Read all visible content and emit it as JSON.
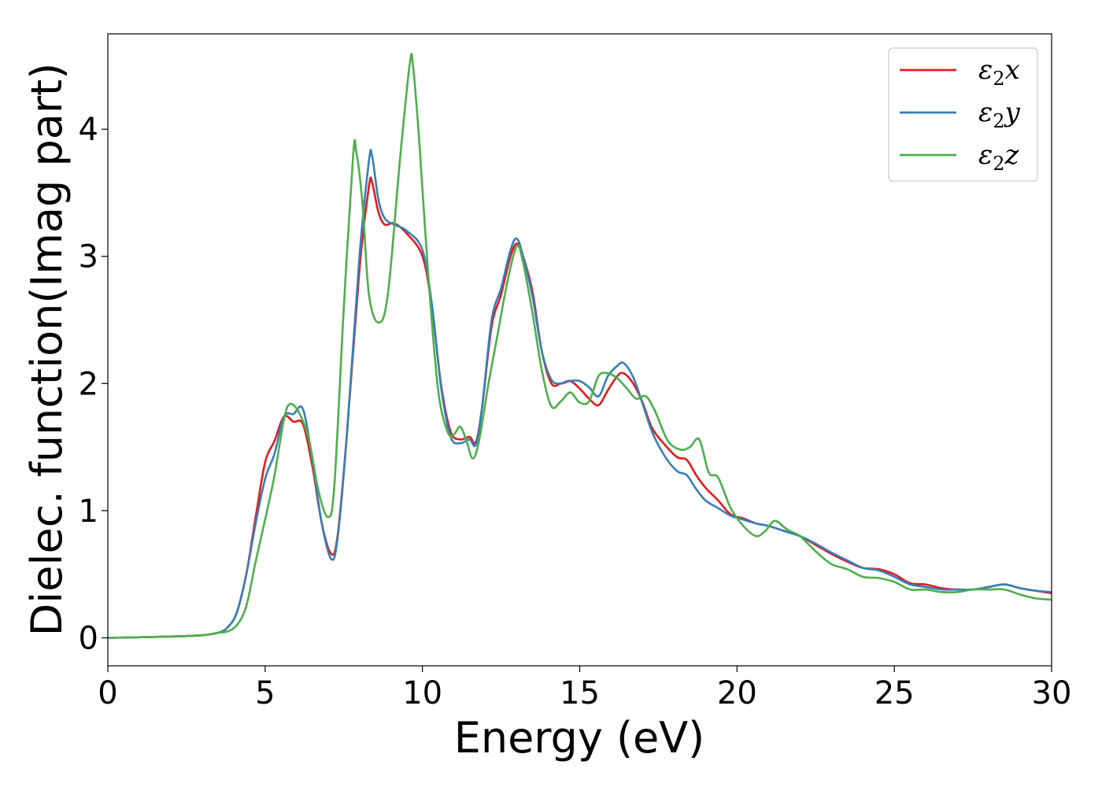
{
  "chart_data": {
    "type": "line",
    "title": "",
    "xlabel": "Energy (eV)",
    "ylabel": "Dielec. function(Imag part)",
    "xlim": [
      0,
      30
    ],
    "ylim": [
      -0.22,
      4.75
    ],
    "xticks": [
      0,
      5,
      10,
      15,
      20,
      25,
      30
    ],
    "xtick_labels": [
      "0",
      "5",
      "10",
      "15",
      "20",
      "25",
      "30"
    ],
    "yticks": [
      0,
      1,
      2,
      3,
      4
    ],
    "ytick_labels": [
      "0",
      "1",
      "2",
      "3",
      "4"
    ],
    "grid": false,
    "legend_position": "top-right",
    "series": [
      {
        "name": "ε2x",
        "symbol": "ε",
        "sub": "2",
        "suffix": "x",
        "color": "#e41a1c",
        "points": [
          [
            0,
            0
          ],
          [
            2,
            0.01
          ],
          [
            3,
            0.02
          ],
          [
            3.5,
            0.04
          ],
          [
            3.8,
            0.08
          ],
          [
            4.1,
            0.2
          ],
          [
            4.4,
            0.5
          ],
          [
            4.7,
            0.95
          ],
          [
            5.0,
            1.38
          ],
          [
            5.3,
            1.55
          ],
          [
            5.6,
            1.74
          ],
          [
            5.9,
            1.7
          ],
          [
            6.2,
            1.68
          ],
          [
            6.5,
            1.35
          ],
          [
            6.8,
            0.9
          ],
          [
            7.1,
            0.66
          ],
          [
            7.3,
            0.8
          ],
          [
            7.6,
            1.6
          ],
          [
            8.0,
            2.9
          ],
          [
            8.3,
            3.55
          ],
          [
            8.4,
            3.58
          ],
          [
            8.6,
            3.35
          ],
          [
            8.8,
            3.25
          ],
          [
            9.1,
            3.26
          ],
          [
            9.5,
            3.18
          ],
          [
            10.0,
            3.0
          ],
          [
            10.3,
            2.6
          ],
          [
            10.6,
            1.98
          ],
          [
            10.9,
            1.62
          ],
          [
            11.2,
            1.56
          ],
          [
            11.5,
            1.58
          ],
          [
            11.7,
            1.54
          ],
          [
            11.9,
            1.82
          ],
          [
            12.2,
            2.45
          ],
          [
            12.5,
            2.7
          ],
          [
            12.8,
            3.0
          ],
          [
            13.0,
            3.1
          ],
          [
            13.2,
            3.0
          ],
          [
            13.5,
            2.72
          ],
          [
            13.8,
            2.25
          ],
          [
            14.1,
            2.0
          ],
          [
            14.4,
            2.0
          ],
          [
            14.7,
            2.02
          ],
          [
            15.0,
            1.96
          ],
          [
            15.3,
            1.88
          ],
          [
            15.6,
            1.83
          ],
          [
            15.9,
            1.95
          ],
          [
            16.2,
            2.06
          ],
          [
            16.4,
            2.08
          ],
          [
            16.7,
            2.0
          ],
          [
            17.0,
            1.85
          ],
          [
            17.3,
            1.65
          ],
          [
            17.7,
            1.52
          ],
          [
            18.1,
            1.42
          ],
          [
            18.4,
            1.4
          ],
          [
            18.7,
            1.28
          ],
          [
            19.0,
            1.18
          ],
          [
            19.4,
            1.08
          ],
          [
            19.8,
            0.97
          ],
          [
            20.2,
            0.94
          ],
          [
            20.6,
            0.9
          ],
          [
            21.0,
            0.88
          ],
          [
            21.5,
            0.84
          ],
          [
            22.0,
            0.8
          ],
          [
            22.5,
            0.73
          ],
          [
            23.0,
            0.66
          ],
          [
            23.5,
            0.6
          ],
          [
            24.0,
            0.55
          ],
          [
            24.5,
            0.54
          ],
          [
            25.0,
            0.5
          ],
          [
            25.5,
            0.43
          ],
          [
            26.0,
            0.42
          ],
          [
            26.5,
            0.39
          ],
          [
            27.0,
            0.38
          ],
          [
            27.5,
            0.38
          ],
          [
            28.0,
            0.4
          ],
          [
            28.5,
            0.42
          ],
          [
            29.0,
            0.39
          ],
          [
            29.5,
            0.37
          ],
          [
            30.0,
            0.35
          ]
        ]
      },
      {
        "name": "ε2y",
        "symbol": "ε",
        "sub": "2",
        "suffix": "y",
        "color": "#377eb8",
        "points": [
          [
            0,
            0
          ],
          [
            2,
            0.01
          ],
          [
            3,
            0.02
          ],
          [
            3.5,
            0.04
          ],
          [
            3.8,
            0.08
          ],
          [
            4.1,
            0.2
          ],
          [
            4.4,
            0.5
          ],
          [
            4.7,
            0.9
          ],
          [
            5.0,
            1.25
          ],
          [
            5.3,
            1.45
          ],
          [
            5.6,
            1.74
          ],
          [
            5.9,
            1.76
          ],
          [
            6.2,
            1.8
          ],
          [
            6.5,
            1.4
          ],
          [
            6.8,
            0.9
          ],
          [
            7.1,
            0.62
          ],
          [
            7.3,
            0.78
          ],
          [
            7.6,
            1.6
          ],
          [
            8.0,
            3.0
          ],
          [
            8.3,
            3.75
          ],
          [
            8.4,
            3.79
          ],
          [
            8.6,
            3.45
          ],
          [
            8.8,
            3.3
          ],
          [
            9.1,
            3.25
          ],
          [
            9.5,
            3.2
          ],
          [
            10.0,
            3.05
          ],
          [
            10.3,
            2.62
          ],
          [
            10.6,
            1.96
          ],
          [
            10.9,
            1.58
          ],
          [
            11.2,
            1.53
          ],
          [
            11.5,
            1.56
          ],
          [
            11.7,
            1.52
          ],
          [
            11.9,
            1.82
          ],
          [
            12.2,
            2.5
          ],
          [
            12.5,
            2.75
          ],
          [
            12.8,
            3.05
          ],
          [
            13.0,
            3.14
          ],
          [
            13.2,
            3.0
          ],
          [
            13.5,
            2.68
          ],
          [
            13.8,
            2.25
          ],
          [
            14.1,
            2.03
          ],
          [
            14.4,
            2.0
          ],
          [
            14.7,
            2.02
          ],
          [
            15.0,
            2.02
          ],
          [
            15.3,
            1.97
          ],
          [
            15.6,
            1.9
          ],
          [
            15.9,
            2.06
          ],
          [
            16.2,
            2.14
          ],
          [
            16.4,
            2.16
          ],
          [
            16.7,
            2.05
          ],
          [
            17.0,
            1.84
          ],
          [
            17.3,
            1.62
          ],
          [
            17.7,
            1.43
          ],
          [
            18.1,
            1.31
          ],
          [
            18.4,
            1.28
          ],
          [
            18.7,
            1.17
          ],
          [
            19.0,
            1.08
          ],
          [
            19.4,
            1.02
          ],
          [
            19.8,
            0.96
          ],
          [
            20.2,
            0.93
          ],
          [
            20.6,
            0.9
          ],
          [
            21.0,
            0.88
          ],
          [
            21.5,
            0.84
          ],
          [
            22.0,
            0.8
          ],
          [
            22.5,
            0.74
          ],
          [
            23.0,
            0.67
          ],
          [
            23.5,
            0.61
          ],
          [
            24.0,
            0.55
          ],
          [
            24.5,
            0.53
          ],
          [
            25.0,
            0.48
          ],
          [
            25.5,
            0.42
          ],
          [
            26.0,
            0.4
          ],
          [
            26.5,
            0.38
          ],
          [
            27.0,
            0.38
          ],
          [
            27.5,
            0.38
          ],
          [
            28.0,
            0.4
          ],
          [
            28.5,
            0.42
          ],
          [
            29.0,
            0.39
          ],
          [
            29.5,
            0.37
          ],
          [
            30.0,
            0.36
          ]
        ]
      },
      {
        "name": "ε2z",
        "symbol": "ε",
        "sub": "2",
        "suffix": "z",
        "color": "#4daf4a",
        "points": [
          [
            0,
            0
          ],
          [
            2,
            0.01
          ],
          [
            3,
            0.02
          ],
          [
            3.5,
            0.04
          ],
          [
            3.8,
            0.05
          ],
          [
            4.1,
            0.1
          ],
          [
            4.4,
            0.25
          ],
          [
            4.7,
            0.6
          ],
          [
            5.0,
            0.93
          ],
          [
            5.3,
            1.28
          ],
          [
            5.6,
            1.72
          ],
          [
            5.8,
            1.84
          ],
          [
            6.1,
            1.76
          ],
          [
            6.4,
            1.55
          ],
          [
            6.7,
            1.15
          ],
          [
            7.0,
            0.95
          ],
          [
            7.2,
            1.2
          ],
          [
            7.5,
            2.6
          ],
          [
            7.8,
            3.8
          ],
          [
            7.9,
            3.82
          ],
          [
            8.1,
            3.4
          ],
          [
            8.3,
            2.7
          ],
          [
            8.6,
            2.48
          ],
          [
            8.9,
            2.7
          ],
          [
            9.3,
            3.8
          ],
          [
            9.6,
            4.52
          ],
          [
            9.7,
            4.5
          ],
          [
            9.9,
            3.9
          ],
          [
            10.2,
            2.8
          ],
          [
            10.5,
            1.95
          ],
          [
            10.8,
            1.62
          ],
          [
            11.0,
            1.6
          ],
          [
            11.2,
            1.66
          ],
          [
            11.4,
            1.55
          ],
          [
            11.6,
            1.41
          ],
          [
            11.8,
            1.55
          ],
          [
            12.1,
            2.0
          ],
          [
            12.4,
            2.4
          ],
          [
            12.7,
            2.8
          ],
          [
            13.0,
            3.08
          ],
          [
            13.2,
            2.95
          ],
          [
            13.5,
            2.55
          ],
          [
            13.8,
            2.1
          ],
          [
            14.1,
            1.82
          ],
          [
            14.4,
            1.86
          ],
          [
            14.7,
            1.93
          ],
          [
            15.0,
            1.85
          ],
          [
            15.3,
            1.86
          ],
          [
            15.6,
            2.06
          ],
          [
            15.9,
            2.08
          ],
          [
            16.2,
            2.04
          ],
          [
            16.5,
            1.96
          ],
          [
            16.8,
            1.88
          ],
          [
            17.1,
            1.9
          ],
          [
            17.4,
            1.78
          ],
          [
            17.8,
            1.55
          ],
          [
            18.2,
            1.48
          ],
          [
            18.5,
            1.5
          ],
          [
            18.8,
            1.56
          ],
          [
            19.1,
            1.3
          ],
          [
            19.4,
            1.26
          ],
          [
            19.8,
            1.02
          ],
          [
            20.2,
            0.88
          ],
          [
            20.6,
            0.8
          ],
          [
            20.9,
            0.84
          ],
          [
            21.2,
            0.92
          ],
          [
            21.6,
            0.85
          ],
          [
            22.0,
            0.8
          ],
          [
            22.5,
            0.68
          ],
          [
            23.0,
            0.58
          ],
          [
            23.5,
            0.54
          ],
          [
            24.0,
            0.48
          ],
          [
            24.5,
            0.47
          ],
          [
            25.0,
            0.44
          ],
          [
            25.5,
            0.38
          ],
          [
            26.0,
            0.38
          ],
          [
            26.5,
            0.36
          ],
          [
            27.0,
            0.36
          ],
          [
            27.5,
            0.38
          ],
          [
            28.0,
            0.38
          ],
          [
            28.5,
            0.38
          ],
          [
            29.0,
            0.34
          ],
          [
            29.5,
            0.31
          ],
          [
            30.0,
            0.3
          ]
        ]
      }
    ]
  }
}
